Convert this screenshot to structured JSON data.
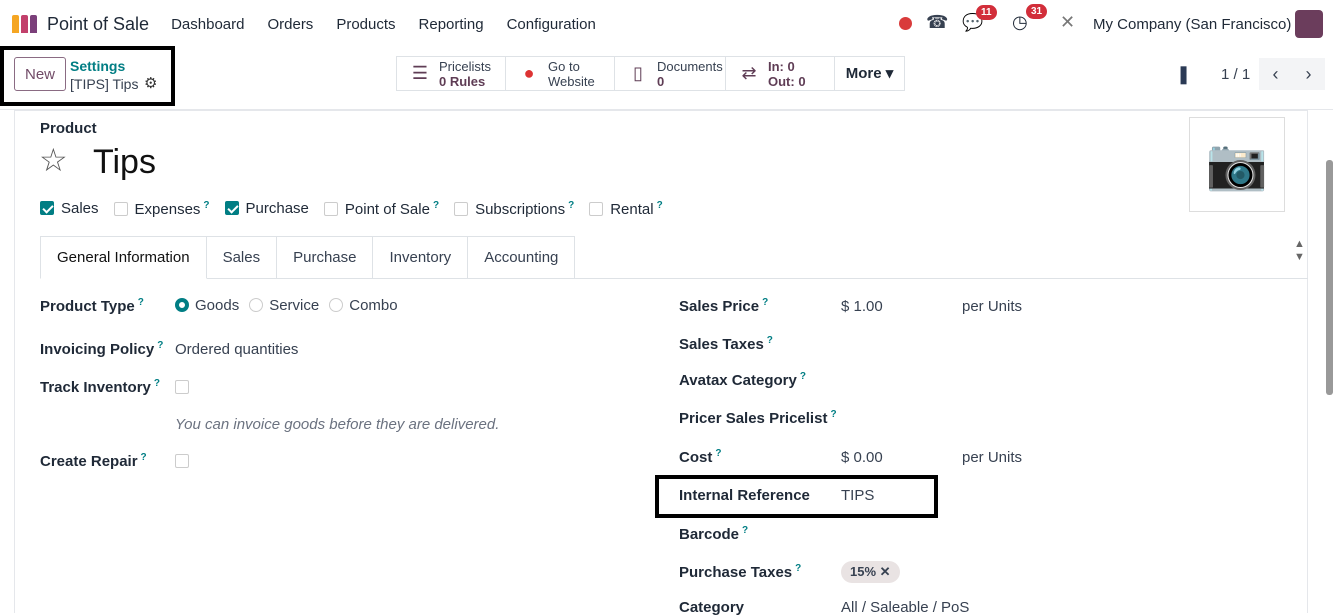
{
  "nav": {
    "app": "Point of Sale",
    "menu": [
      "Dashboard",
      "Orders",
      "Products",
      "Reporting",
      "Configuration"
    ],
    "messages_count": "11",
    "activities_count": "31",
    "company": "My Company (San Francisco)"
  },
  "control": {
    "new": "New",
    "breadcrumb_parent": "Settings",
    "breadcrumb_current": "[TIPS] Tips",
    "pager": "1 / 1",
    "smart": [
      {
        "title": "Pricelists",
        "value": "0 Rules"
      },
      {
        "title": "Go to",
        "value": "Website"
      },
      {
        "title": "Documents",
        "value": "0"
      },
      {
        "title": "In: 0",
        "value": "Out: 0"
      }
    ],
    "more": "More"
  },
  "form": {
    "label": "Product",
    "name": "Tips",
    "flags": [
      {
        "label": "Sales",
        "checked": true
      },
      {
        "label": "Expenses",
        "checked": false,
        "help": "?"
      },
      {
        "label": "Purchase",
        "checked": true
      },
      {
        "label": "Point of Sale",
        "checked": false,
        "help": "?"
      },
      {
        "label": "Subscriptions",
        "checked": false,
        "help": "?"
      },
      {
        "label": "Rental",
        "checked": false,
        "help": "?"
      }
    ],
    "tabs": [
      "General Information",
      "Sales",
      "Purchase",
      "Inventory",
      "Accounting"
    ],
    "left": {
      "product_type": "Product Type",
      "types": [
        "Goods",
        "Service",
        "Combo"
      ],
      "invoicing_policy": "Invoicing Policy",
      "invoicing_value": "Ordered quantities",
      "track_inventory": "Track Inventory",
      "hint": "You can invoice goods before they are delivered.",
      "create_repair": "Create Repair"
    },
    "right": {
      "sales_price": "Sales Price",
      "sales_price_value": "$ 1.00",
      "per_units": "per Units",
      "sales_taxes": "Sales Taxes",
      "avatax": "Avatax Category",
      "pricer": "Pricer Sales Pricelist",
      "cost": "Cost",
      "cost_value": "$ 0.00",
      "internal_ref": "Internal Reference",
      "internal_ref_value": "TIPS",
      "barcode": "Barcode",
      "purchase_taxes": "Purchase Taxes",
      "purchase_tax_tag": "15%",
      "category": "Category",
      "category_value": "All / Saleable / PoS"
    },
    "help": "?"
  },
  "colors": {
    "brand": "#714b67",
    "accent": "#017e84",
    "badge": "#d22e3a"
  }
}
